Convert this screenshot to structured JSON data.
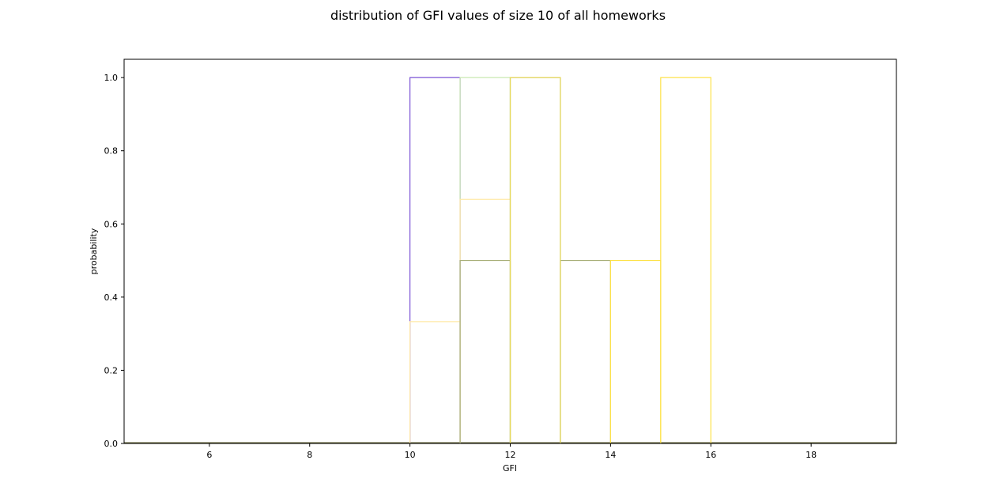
{
  "chart_data": {
    "type": "histogram",
    "title": "distribution of GFI values of size 10 of all homeworks",
    "xlabel": "GFI",
    "ylabel": "probability",
    "xlim": [
      4.3,
      19.7
    ],
    "ylim": [
      0.0,
      1.05
    ],
    "xticks": [
      6,
      8,
      10,
      12,
      14,
      16,
      18
    ],
    "yticks": [
      0.0,
      0.2,
      0.4,
      0.6,
      0.8,
      1.0
    ],
    "grid": false,
    "legend": "none",
    "series": [
      {
        "color": "#7b52d6",
        "bins": [
          [
            10,
            11,
            1.0
          ]
        ]
      },
      {
        "color": "#c9e8b0",
        "bins": [
          [
            11,
            12,
            1.0
          ]
        ]
      },
      {
        "color": "#ffe9a6",
        "bins": [
          [
            10,
            11,
            0.333
          ],
          [
            11,
            12,
            0.667
          ]
        ]
      },
      {
        "color": "#a9b07a",
        "bins": [
          [
            11,
            12,
            0.5
          ],
          [
            12,
            13,
            1.0
          ],
          [
            13,
            14,
            0.5
          ]
        ]
      },
      {
        "color": "#e8d95a",
        "bins": [
          [
            12,
            13,
            1.0
          ]
        ]
      },
      {
        "color": "#fde24a",
        "bins": [
          [
            14,
            15,
            0.5
          ],
          [
            15,
            16,
            1.0
          ]
        ]
      }
    ],
    "baseline_color": "#5a5a28"
  }
}
